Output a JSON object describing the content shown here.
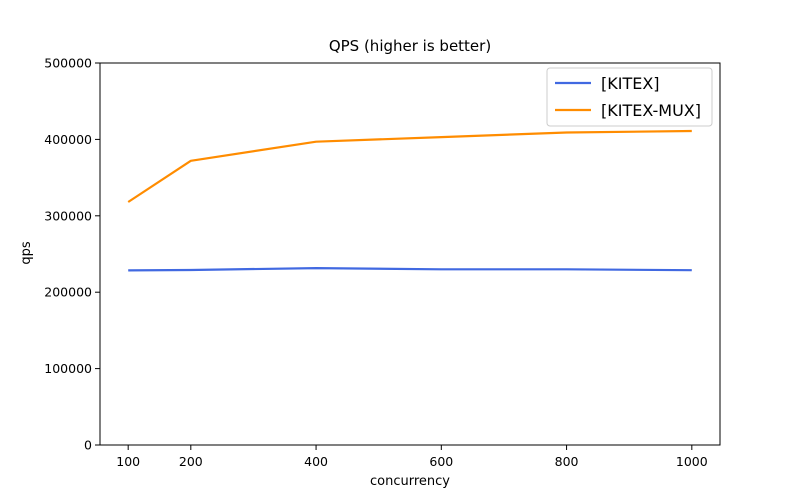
{
  "chart_data": {
    "type": "line",
    "title": "QPS (higher is better)",
    "xlabel": "concurrency",
    "ylabel": "qps",
    "x": [
      100,
      200,
      400,
      600,
      800,
      1000
    ],
    "xticks": [
      100,
      200,
      400,
      600,
      800,
      1000
    ],
    "xlim": [
      55,
      1045
    ],
    "yticks": [
      0,
      100000,
      200000,
      300000,
      400000,
      500000
    ],
    "ylim": [
      0,
      500000
    ],
    "grid": false,
    "legend_position": "top-right",
    "series": [
      {
        "name": "[KITEX]",
        "color": "#4169e1",
        "values": [
          228500,
          229000,
          231500,
          230000,
          230000,
          228800
        ]
      },
      {
        "name": "[KITEX-MUX]",
        "color": "#ff8c00",
        "values": [
          318000,
          372000,
          397000,
          403000,
          409000,
          411000
        ]
      }
    ]
  }
}
